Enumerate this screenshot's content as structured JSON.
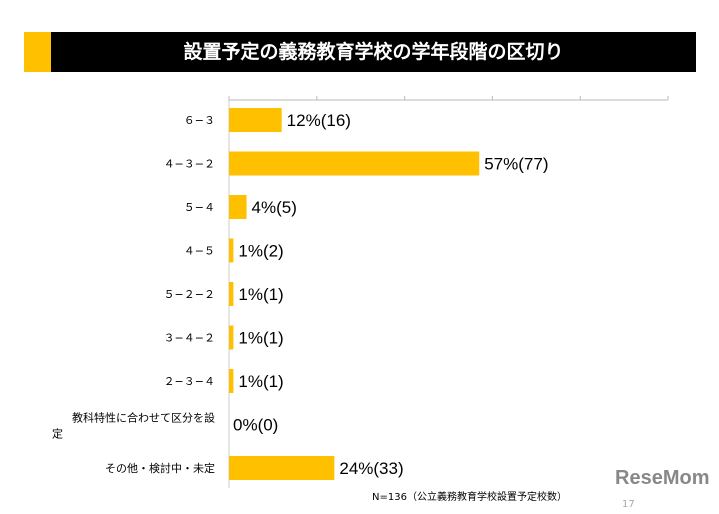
{
  "chart_data": {
    "type": "bar",
    "orientation": "horizontal",
    "title": "設置予定の義務教育学校の学年段階の区切り",
    "categories": [
      "６−３",
      "４−３−２",
      "５−４",
      "４−５",
      "５−２−２",
      "３−４−２",
      "２−３−４",
      "教科特性に合わせて区分を設定",
      "その他・検討中・未定"
    ],
    "values": [
      12,
      57,
      4,
      1,
      1,
      1,
      1,
      0,
      24
    ],
    "counts": [
      16,
      77,
      5,
      2,
      1,
      1,
      1,
      0,
      33
    ],
    "data_labels": [
      "12%(16)",
      "57%(77)",
      "4%(5)",
      "1%(2)",
      "1%(1)",
      "1%(1)",
      "1%(1)",
      "0%(0)",
      "24%(33)"
    ],
    "xlim": [
      0,
      100
    ],
    "unit": "%",
    "grid": false,
    "tick_labels_shown": false,
    "bar_color": "#FFC000",
    "note": "N=136（公立義務教育学校設置予定校数）"
  },
  "page_number": "17",
  "watermark": "ReseMom"
}
